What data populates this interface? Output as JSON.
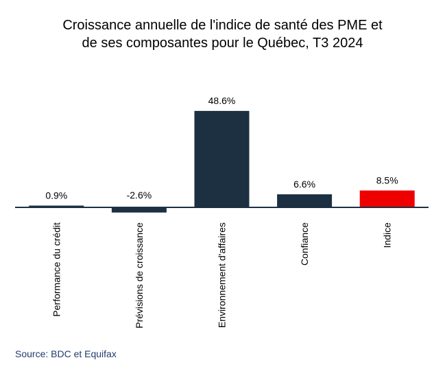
{
  "chart_data": {
    "type": "bar",
    "title_line1": "Croissance annuelle de l'indice de santé des PME et",
    "title_line2": "de ses composantes pour le Québec, T3 2024",
    "categories": [
      "Performance du crédit",
      "Prévisions de croissance",
      "Environnement d'affaires",
      "Confiance",
      "Indice"
    ],
    "values": [
      0.9,
      -2.6,
      48.6,
      6.6,
      8.5
    ],
    "data_labels": [
      "0.9%",
      "-2.6%",
      "48.6%",
      "6.6%",
      "8.5%"
    ],
    "colors": [
      "#1c3041",
      "#1c3041",
      "#1c3041",
      "#1c3041",
      "#ee0000"
    ],
    "axis_color": "#1c3041",
    "grid": false,
    "legend": "none"
  },
  "source": "Source: BDC et Equifax"
}
